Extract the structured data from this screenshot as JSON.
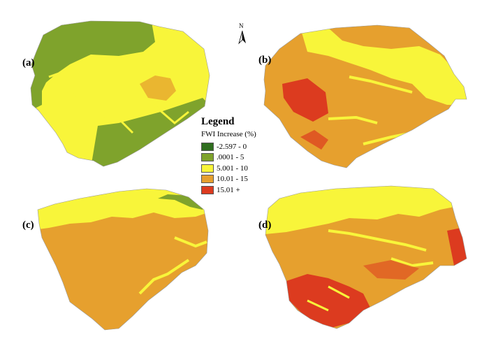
{
  "panels": [
    {
      "label": "(a)"
    },
    {
      "label": "(b)"
    },
    {
      "label": "(c)"
    },
    {
      "label": "(d)"
    }
  ],
  "legend": {
    "title": "Legend",
    "subtitle": "FWI Increase (%)",
    "items": [
      {
        "label": "-2.597 - 0",
        "color": "#2f6e1f"
      },
      {
        "label": ".0001 - 5",
        "color": "#7fa32c"
      },
      {
        "label": "5.001 - 10",
        "color": "#f8f53a"
      },
      {
        "label": "10.01 - 15",
        "color": "#e6a02e"
      },
      {
        "label": "15.01 +",
        "color": "#dc3b1f"
      }
    ]
  },
  "north_arrow": {
    "label": "N"
  },
  "colors": {
    "dark_green": "#2f6e1f",
    "green": "#7fa32c",
    "yellow": "#f8f53a",
    "orange": "#e6a02e",
    "red": "#dc3b1f"
  }
}
